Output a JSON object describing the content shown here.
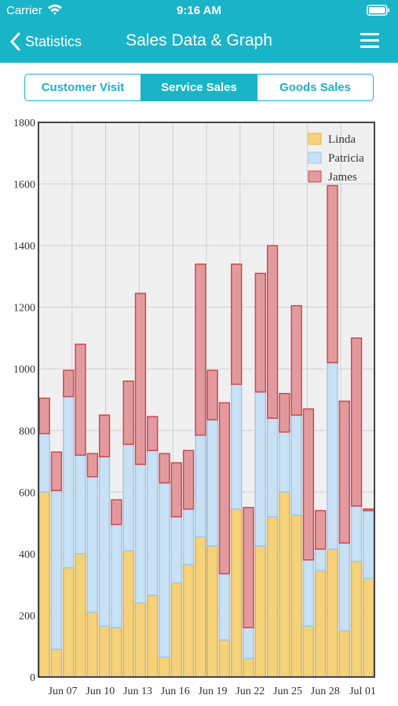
{
  "status_bar": {
    "carrier": "Carrier",
    "time": "9:16 AM"
  },
  "nav": {
    "back_label": "Statistics",
    "title": "Sales Data & Graph"
  },
  "tabs": [
    {
      "label": "Customer Visit",
      "active": false
    },
    {
      "label": "Service Sales",
      "active": true
    },
    {
      "label": "Goods Sales",
      "active": false
    }
  ],
  "colors": {
    "accent": "#1ab4c8",
    "linda": "#f5d27a",
    "patricia": "#c8e1f5",
    "james": "#e29a9e"
  },
  "chart_data": {
    "type": "bar",
    "stacked": true,
    "ylim": [
      0,
      1800
    ],
    "yticks": [
      0,
      200,
      400,
      600,
      800,
      1000,
      1200,
      1400,
      1600,
      1800
    ],
    "xtick_labels": [
      "Jun 07",
      "Jun 10",
      "Jun 13",
      "Jun 16",
      "Jun 19",
      "Jun 22",
      "Jun 25",
      "Jun 28",
      "Jul 01"
    ],
    "grid": true,
    "legend_position": "top-right",
    "series": [
      {
        "name": "Linda",
        "values": [
          600,
          90,
          355,
          400,
          210,
          165,
          160,
          410,
          240,
          265,
          65,
          305,
          365,
          455,
          425,
          120,
          545,
          60,
          425,
          520,
          600,
          525,
          165,
          345,
          415,
          150,
          375,
          320
        ]
      },
      {
        "name": "Patricia",
        "values": [
          190,
          515,
          555,
          320,
          440,
          550,
          335,
          345,
          450,
          470,
          565,
          215,
          180,
          330,
          410,
          215,
          405,
          100,
          500,
          320,
          195,
          325,
          215,
          70,
          605,
          285,
          180,
          220
        ]
      },
      {
        "name": "James",
        "values": [
          115,
          125,
          85,
          360,
          75,
          135,
          80,
          205,
          555,
          110,
          95,
          175,
          190,
          555,
          160,
          555,
          390,
          390,
          385,
          560,
          125,
          355,
          490,
          125,
          575,
          460,
          545,
          5
        ]
      }
    ]
  }
}
